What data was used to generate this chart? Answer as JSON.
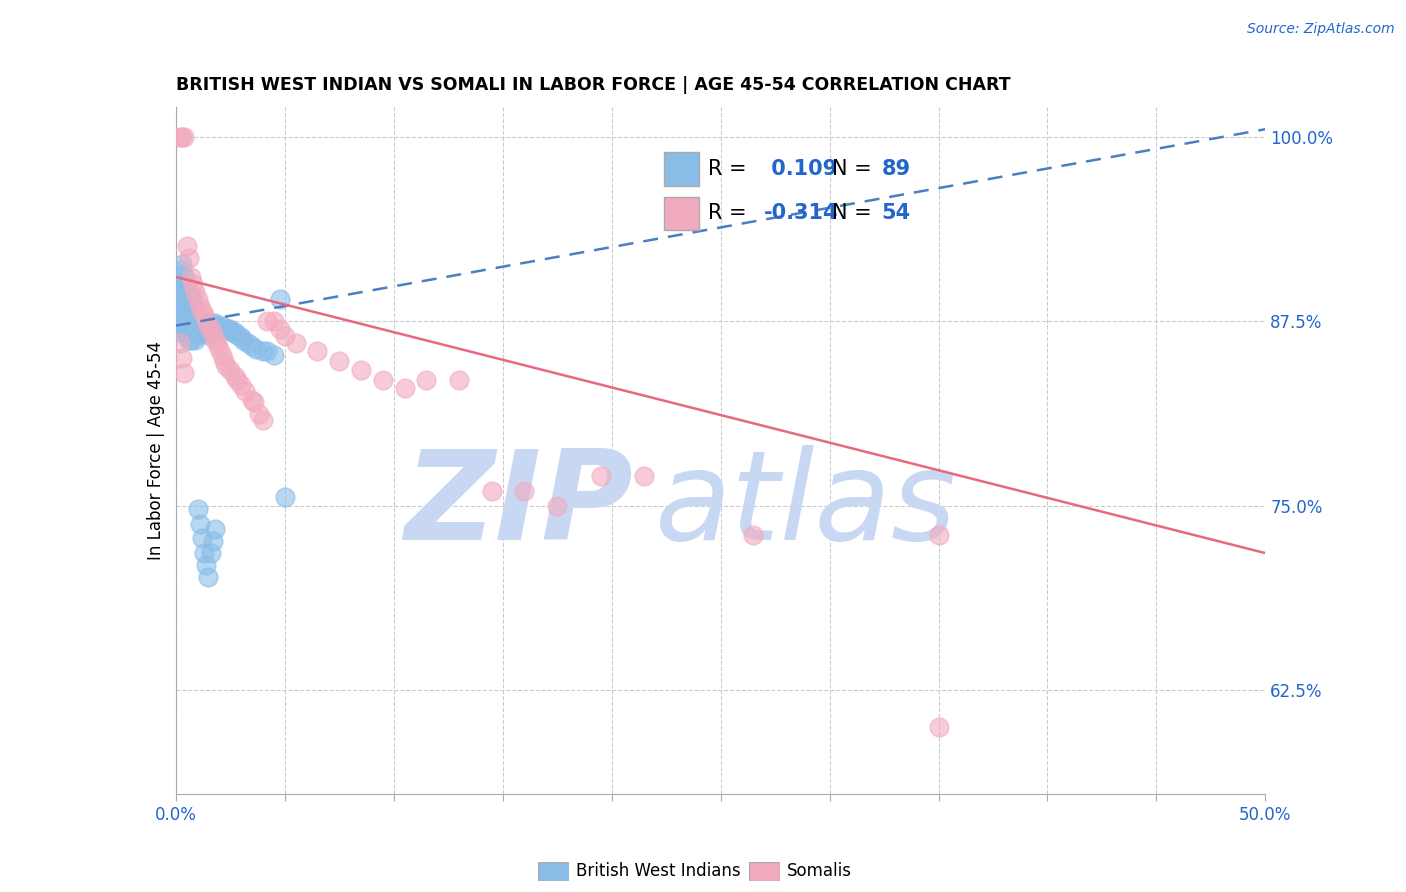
{
  "title": "BRITISH WEST INDIAN VS SOMALI IN LABOR FORCE | AGE 45-54 CORRELATION CHART",
  "source": "Source: ZipAtlas.com",
  "ylabel": "In Labor Force | Age 45-54",
  "xlim": [
    0.0,
    0.5
  ],
  "ylim": [
    0.555,
    1.02
  ],
  "xticks_major": [
    0.0,
    0.05,
    0.1,
    0.15,
    0.2,
    0.25,
    0.3,
    0.35,
    0.4,
    0.45,
    0.5
  ],
  "xtick_labels_show": [
    "0.0%",
    "",
    "",
    "",
    "",
    "",
    "",
    "",
    "",
    "",
    "50.0%"
  ],
  "yticks_right": [
    0.625,
    0.75,
    0.875,
    1.0
  ],
  "ytick_right_labels": [
    "62.5%",
    "75.0%",
    "87.5%",
    "100.0%"
  ],
  "r_blue": 0.109,
  "n_blue": 89,
  "r_pink": -0.314,
  "n_pink": 54,
  "blue_color": "#89BDE8",
  "pink_color": "#F2AABE",
  "blue_line_color": "#4A7FC1",
  "pink_line_color": "#E86880",
  "blue_trend_x0": 0.0,
  "blue_trend_y0": 0.872,
  "blue_trend_x1": 0.5,
  "blue_trend_y1": 1.005,
  "pink_trend_x0": 0.0,
  "pink_trend_y0": 0.905,
  "pink_trend_x1": 0.5,
  "pink_trend_y1": 0.718,
  "watermark_zip": "ZIP",
  "watermark_atlas": "atlas",
  "watermark_color": "#C8D8F2",
  "legend_label_blue": "British West Indians",
  "legend_label_pink": "Somalis",
  "blue_scatter_x": [
    0.001,
    0.001,
    0.001,
    0.002,
    0.002,
    0.002,
    0.002,
    0.003,
    0.003,
    0.003,
    0.003,
    0.003,
    0.004,
    0.004,
    0.004,
    0.005,
    0.005,
    0.005,
    0.005,
    0.006,
    0.006,
    0.006,
    0.006,
    0.006,
    0.007,
    0.007,
    0.007,
    0.007,
    0.008,
    0.008,
    0.008,
    0.009,
    0.009,
    0.009,
    0.01,
    0.01,
    0.01,
    0.011,
    0.011,
    0.012,
    0.012,
    0.013,
    0.013,
    0.014,
    0.014,
    0.015,
    0.015,
    0.016,
    0.016,
    0.017,
    0.018,
    0.018,
    0.019,
    0.02,
    0.021,
    0.022,
    0.023,
    0.024,
    0.025,
    0.026,
    0.027,
    0.028,
    0.03,
    0.031,
    0.033,
    0.035,
    0.037,
    0.04,
    0.042,
    0.045,
    0.002,
    0.003,
    0.004,
    0.005,
    0.006,
    0.007,
    0.008,
    0.009,
    0.01,
    0.011,
    0.012,
    0.013,
    0.014,
    0.015,
    0.016,
    0.017,
    0.018,
    0.048,
    0.05
  ],
  "blue_scatter_y": [
    0.88,
    0.875,
    0.868,
    0.895,
    0.888,
    0.878,
    0.87,
    0.91,
    0.9,
    0.895,
    0.882,
    0.872,
    0.888,
    0.88,
    0.87,
    0.882,
    0.878,
    0.872,
    0.865,
    0.882,
    0.878,
    0.874,
    0.87,
    0.862,
    0.878,
    0.874,
    0.87,
    0.862,
    0.878,
    0.872,
    0.866,
    0.876,
    0.87,
    0.862,
    0.876,
    0.872,
    0.866,
    0.876,
    0.87,
    0.876,
    0.87,
    0.874,
    0.868,
    0.874,
    0.868,
    0.872,
    0.866,
    0.874,
    0.868,
    0.872,
    0.874,
    0.868,
    0.872,
    0.87,
    0.872,
    0.87,
    0.87,
    0.87,
    0.87,
    0.868,
    0.868,
    0.866,
    0.864,
    0.862,
    0.86,
    0.858,
    0.856,
    0.855,
    0.855,
    0.852,
    0.9,
    0.914,
    0.906,
    0.9,
    0.895,
    0.892,
    0.888,
    0.884,
    0.748,
    0.738,
    0.728,
    0.718,
    0.71,
    0.702,
    0.718,
    0.726,
    0.734,
    0.89,
    0.756
  ],
  "pink_scatter_x": [
    0.002,
    0.003,
    0.004,
    0.005,
    0.006,
    0.007,
    0.008,
    0.009,
    0.01,
    0.011,
    0.012,
    0.013,
    0.014,
    0.015,
    0.016,
    0.017,
    0.018,
    0.019,
    0.02,
    0.021,
    0.022,
    0.023,
    0.025,
    0.027,
    0.028,
    0.03,
    0.032,
    0.035,
    0.036,
    0.038,
    0.04,
    0.042,
    0.045,
    0.048,
    0.05,
    0.055,
    0.065,
    0.075,
    0.085,
    0.095,
    0.105,
    0.115,
    0.13,
    0.145,
    0.16,
    0.175,
    0.195,
    0.215,
    0.265,
    0.35,
    0.35,
    0.002,
    0.003,
    0.004
  ],
  "pink_scatter_y": [
    1.0,
    1.0,
    1.0,
    0.926,
    0.918,
    0.905,
    0.9,
    0.895,
    0.89,
    0.885,
    0.882,
    0.88,
    0.876,
    0.872,
    0.87,
    0.866,
    0.862,
    0.86,
    0.856,
    0.852,
    0.848,
    0.845,
    0.842,
    0.838,
    0.835,
    0.832,
    0.828,
    0.822,
    0.82,
    0.812,
    0.808,
    0.875,
    0.875,
    0.87,
    0.865,
    0.86,
    0.855,
    0.848,
    0.842,
    0.835,
    0.83,
    0.835,
    0.835,
    0.76,
    0.76,
    0.75,
    0.77,
    0.77,
    0.73,
    0.73,
    0.6,
    0.86,
    0.85,
    0.84
  ]
}
